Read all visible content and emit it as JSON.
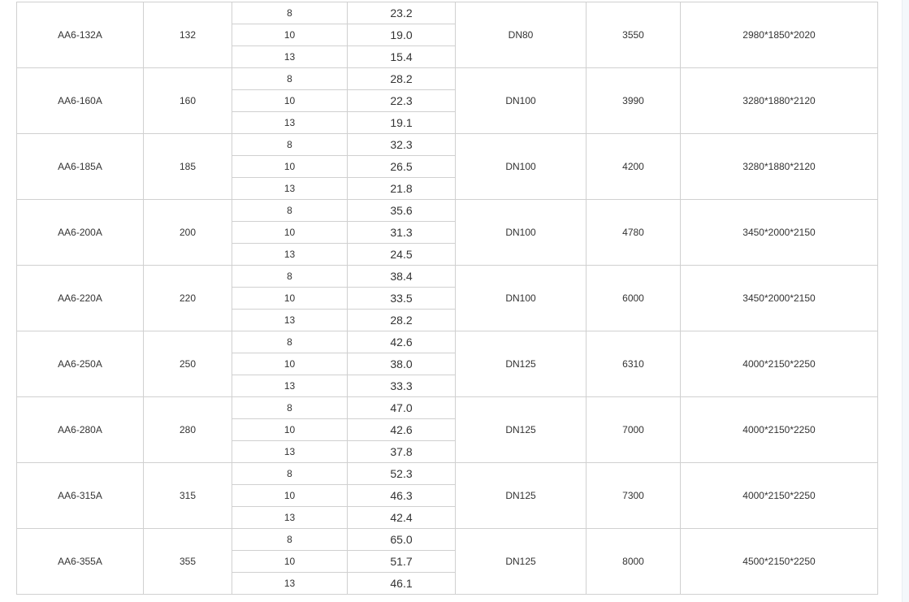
{
  "table": {
    "rows": [
      {
        "model": "AA6-132A",
        "power": "132",
        "pressures": [
          "8",
          "10",
          "13"
        ],
        "flows": [
          "23.2",
          "19.0",
          "15.4"
        ],
        "outlet": "DN80",
        "weight": "3550",
        "dimensions": "2980*1850*2020"
      },
      {
        "model": "AA6-160A",
        "power": "160",
        "pressures": [
          "8",
          "10",
          "13"
        ],
        "flows": [
          "28.2",
          "22.3",
          "19.1"
        ],
        "outlet": "DN100",
        "weight": "3990",
        "dimensions": "3280*1880*2120"
      },
      {
        "model": "AA6-185A",
        "power": "185",
        "pressures": [
          "8",
          "10",
          "13"
        ],
        "flows": [
          "32.3",
          "26.5",
          "21.8"
        ],
        "outlet": "DN100",
        "weight": "4200",
        "dimensions": "3280*1880*2120"
      },
      {
        "model": "AA6-200A",
        "power": "200",
        "pressures": [
          "8",
          "10",
          "13"
        ],
        "flows": [
          "35.6",
          "31.3",
          "24.5"
        ],
        "outlet": "DN100",
        "weight": "4780",
        "dimensions": "3450*2000*2150"
      },
      {
        "model": "AA6-220A",
        "power": "220",
        "pressures": [
          "8",
          "10",
          "13"
        ],
        "flows": [
          "38.4",
          "33.5",
          "28.2"
        ],
        "outlet": "DN100",
        "weight": "6000",
        "dimensions": "3450*2000*2150"
      },
      {
        "model": "AA6-250A",
        "power": "250",
        "pressures": [
          "8",
          "10",
          "13"
        ],
        "flows": [
          "42.6",
          "38.0",
          "33.3"
        ],
        "outlet": "DN125",
        "weight": "6310",
        "dimensions": "4000*2150*2250"
      },
      {
        "model": "AA6-280A",
        "power": "280",
        "pressures": [
          "8",
          "10",
          "13"
        ],
        "flows": [
          "47.0",
          "42.6",
          "37.8"
        ],
        "outlet": "DN125",
        "weight": "7000",
        "dimensions": "4000*2150*2250"
      },
      {
        "model": "AA6-315A",
        "power": "315",
        "pressures": [
          "8",
          "10",
          "13"
        ],
        "flows": [
          "52.3",
          "46.3",
          "42.4"
        ],
        "outlet": "DN125",
        "weight": "7300",
        "dimensions": "4000*2150*2250"
      },
      {
        "model": "AA6-355A",
        "power": "355",
        "pressures": [
          "8",
          "10",
          "13"
        ],
        "flows": [
          "65.0",
          "51.7",
          "46.1"
        ],
        "outlet": "DN125",
        "weight": "8000",
        "dimensions": "4500*2150*2250"
      }
    ]
  }
}
